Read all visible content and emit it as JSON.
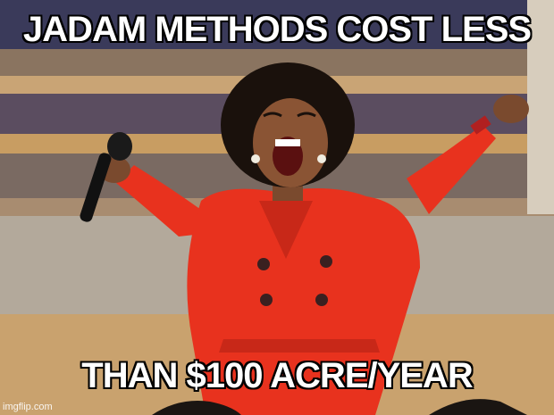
{
  "meme": {
    "top_text": "JADAM METHODS COST LESS",
    "bottom_text": "THAN $100 ACRE/YEAR",
    "watermark": "imgflip.com"
  },
  "colors": {
    "suit": "#e8321e",
    "background_stage": "#b08a5a",
    "text": "#ffffff",
    "outline": "#000000"
  }
}
